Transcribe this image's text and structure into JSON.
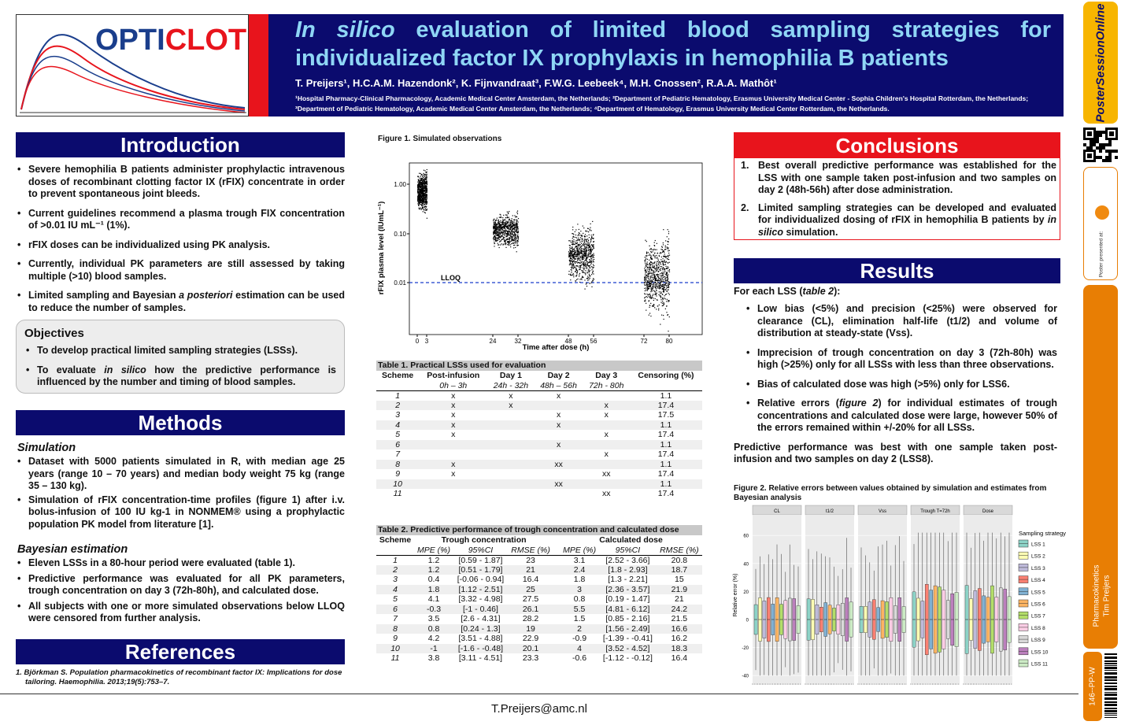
{
  "header": {
    "logo_text": "OPTICLOT",
    "title_italic": "In silico",
    "title_rest": "evaluation of limited blood sampling strategies for individualized factor IX prophylaxis in hemophilia B patients",
    "authors": "T. Preijers¹, H.C.A.M. Hazendonk², K. Fijnvandraat³, F.W.G. Leebeek⁴, M.H. Cnossen², R.A.A. Mathôt¹",
    "affiliations": "¹Hospital Pharmacy-Clinical Pharmacology, Academic Medical Center Amsterdam, the Netherlands; ²Department of Pediatric Hematology, Erasmus University Medical Center - Sophia Children's Hospital Rotterdam, the Netherlands; ³Department of Pediatric Hematology, Academic Medical Center Amsterdam, the Netherlands; ⁴Department of Hematology, Erasmus University Medical Center Rotterdam, the Netherlands."
  },
  "introduction": {
    "heading": "Introduction",
    "bullets": [
      "Severe hemophilia B patients administer prophylactic intravenous doses of recombinant clotting factor IX (rFIX) concentrate in order to prevent spontaneous joint bleeds.",
      "Current guidelines recommend a plasma trough FIX concentration of >0.01 IU mL⁻¹ (1%).",
      "rFIX doses can be individualized using PK analysis.",
      "Currently, individual PK parameters are still assessed by taking multiple (>10) blood samples.",
      "Limited sampling and Bayesian a posteriori estimation can be used to reduce the number of samples."
    ]
  },
  "objectives": {
    "heading": "Objectives",
    "bullets": [
      "To develop practical limited sampling strategies (LSSs).",
      "To evaluate in silico how the predictive performance is influenced by the number and timing of blood samples."
    ]
  },
  "methods": {
    "heading": "Methods",
    "sim_title": "Simulation",
    "sim_bullets": [
      "Dataset with 5000 patients simulated in R, with median age 25 years (range 10 – 70 years) and median body weight 75 kg (range 35 – 130 kg).",
      "Simulation of rFIX concentration-time profiles (figure 1) after i.v. bolus-infusion of 100 IU kg-1 in NONMEM® using a prophylactic population PK model from literature [1]."
    ],
    "bayes_title": "Bayesian estimation",
    "bayes_bullets": [
      "Eleven LSSs in a 80-hour period were evaluated (table 1).",
      "Predictive performance was evaluated for all PK parameters, trough concentration on day 3 (72h-80h), and calculated dose.",
      "All subjects with one or more simulated observations below LLOQ were censored from further analysis."
    ]
  },
  "references": {
    "heading": "References",
    "items": [
      "1.  Björkman S. Population pharmacokinetics of recombinant factor IX: Implications for dose tailoring. Haemophilia. 2013;19(5):753–7."
    ]
  },
  "figure1": {
    "caption": "Figure 1. Simulated observations",
    "ylabel": "rFIX plasma level (IUmL⁻¹)",
    "xlabel": "Time after dose (h)",
    "lloq": "LLOQ",
    "yticks": [
      "1.00",
      "0.10",
      "0.01"
    ],
    "xticks": [
      "0",
      "3",
      "24",
      "32",
      "48",
      "56",
      "72",
      "80"
    ]
  },
  "table1": {
    "caption": "Table 1. Practical LSSs used for evaluation",
    "headers": [
      "Scheme",
      "Post-infusion",
      "Day 1",
      "Day 2",
      "Day 3",
      "Censoring (%)"
    ],
    "subheaders": [
      "",
      "0h – 3h",
      "24h - 32h",
      "48h – 56h",
      "72h - 80h",
      ""
    ],
    "rows": [
      [
        "1",
        "x",
        "x",
        "x",
        "",
        "1.1"
      ],
      [
        "2",
        "x",
        "x",
        "",
        "x",
        "17.4"
      ],
      [
        "3",
        "x",
        "",
        "x",
        "x",
        "17.5"
      ],
      [
        "4",
        "x",
        "",
        "x",
        "",
        "1.1"
      ],
      [
        "5",
        "x",
        "",
        "",
        "x",
        "17.4"
      ],
      [
        "6",
        "",
        "",
        "x",
        "",
        "1.1"
      ],
      [
        "7",
        "",
        "",
        "",
        "x",
        "17.4"
      ],
      [
        "8",
        "x",
        "",
        "xx",
        "",
        "1.1"
      ],
      [
        "9",
        "x",
        "",
        "",
        "xx",
        "17.4"
      ],
      [
        "10",
        "",
        "",
        "xx",
        "",
        "1.1"
      ],
      [
        "11",
        "",
        "",
        "",
        "xx",
        "17.4"
      ]
    ]
  },
  "table2": {
    "caption": "Table 2. Predictive performance of trough concentration and calculated dose",
    "h_scheme": "Scheme",
    "h_trough": "Trough concentration",
    "h_dose": "Calculated dose",
    "sub": [
      "MPE (%)",
      "95%CI",
      "RMSE (%)",
      "MPE (%)",
      "95%CI",
      "RMSE (%)"
    ],
    "rows": [
      [
        "1",
        "1.2",
        "[0.59 - 1.87]",
        "23",
        "3.1",
        "[2.52 - 3.66]",
        "20.8"
      ],
      [
        "2",
        "1.2",
        "[0.51 - 1.79]",
        "21",
        "2.4",
        "[1.8 - 2.93]",
        "18.7"
      ],
      [
        "3",
        "0.4",
        "[-0.06 - 0.94]",
        "16.4",
        "1.8",
        "[1.3 - 2.21]",
        "15"
      ],
      [
        "4",
        "1.8",
        "[1.12 - 2.51]",
        "25",
        "3",
        "[2.36 - 3.57]",
        "21.9"
      ],
      [
        "5",
        "4.1",
        "[3.32 - 4.98]",
        "27.5",
        "0.8",
        "[0.19 - 1.47]",
        "21"
      ],
      [
        "6",
        "-0.3",
        "[-1 - 0.46]",
        "26.1",
        "5.5",
        "[4.81 - 6.12]",
        "24.2"
      ],
      [
        "7",
        "3.5",
        "[2.6 - 4.31]",
        "28.2",
        "1.5",
        "[0.85 - 2.16]",
        "21.5"
      ],
      [
        "8",
        "0.8",
        "[0.24 - 1.3]",
        "19",
        "2",
        "[1.56 - 2.49]",
        "16.6"
      ],
      [
        "9",
        "4.2",
        "[3.51 - 4.88]",
        "22.9",
        "-0.9",
        "[-1.39 - -0.41]",
        "16.2"
      ],
      [
        "10",
        "-1",
        "[-1.6 - -0.48]",
        "20.1",
        "4",
        "[3.52 - 4.52]",
        "18.3"
      ],
      [
        "11",
        "3.8",
        "[3.11 - 4.51]",
        "23.3",
        "-0.6",
        "[-1.12 - -0.12]",
        "16.4"
      ]
    ]
  },
  "conclusions": {
    "heading": "Conclusions",
    "items": [
      "Best overall predictive performance was established for the LSS with one sample taken post-infusion and two samples on day 2 (48h-56h) after dose administration.",
      "Limited sampling strategies can be developed and evaluated for individualized dosing of rFIX in hemophilia B patients by in silico simulation."
    ]
  },
  "results": {
    "heading": "Results",
    "intro": "For each LSS (table 2):",
    "bullets": [
      "Low bias (<5%) and precision (<25%) were observed for clearance (CL), elimination half-life (t1/2) and volume of distribution at steady-state (Vss).",
      "Imprecision of trough concentration on day 3 (72h-80h) was high (>25%) only for all LSSs with less than three observations.",
      "Bias of calculated dose was high (>5%) only for LSS6.",
      "Relative errors (figure 2) for individual estimates of trough concentrations and calculated dose were large, however 50% of the errors remained within +/-20% for all LSSs."
    ],
    "summary": "Predictive performance was best with one sample taken post-infusion and two samples on day 2 (LSS8)."
  },
  "figure2": {
    "caption": "Figure 2. Relative errors between values obtained by simulation and estimates from Bayesian analysis",
    "panels": [
      "CL",
      "t1/2",
      "Vss",
      "Trough T=72h",
      "Dose"
    ],
    "ylabel": "Relative error (%)",
    "yticks": [
      "60",
      "40",
      "20",
      "0",
      "-20",
      "-40"
    ],
    "legend_title": "Sampling strategy",
    "legend": [
      "LSS 1",
      "LSS 2",
      "LSS 3",
      "LSS 4",
      "LSS 5",
      "LSS 6",
      "LSS 7",
      "LSS 8",
      "LSS 9",
      "LSS 10",
      "LSS 11"
    ],
    "colors": [
      "#8dd3c7",
      "#ffffb3",
      "#bebada",
      "#fb8072",
      "#80b1d3",
      "#fdb462",
      "#b3de69",
      "#fccde5",
      "#d9d9d9",
      "#bc80bd",
      "#ccebc5"
    ]
  },
  "footer": {
    "email": "T.Preijers@amc.nl"
  },
  "sidebar": {
    "brand": "PosterSessionOnline",
    "presented": "Poster presented at:",
    "topic": "Pharmacokinetics",
    "author": "Tim Preijers",
    "code": "146--PP-W"
  }
}
